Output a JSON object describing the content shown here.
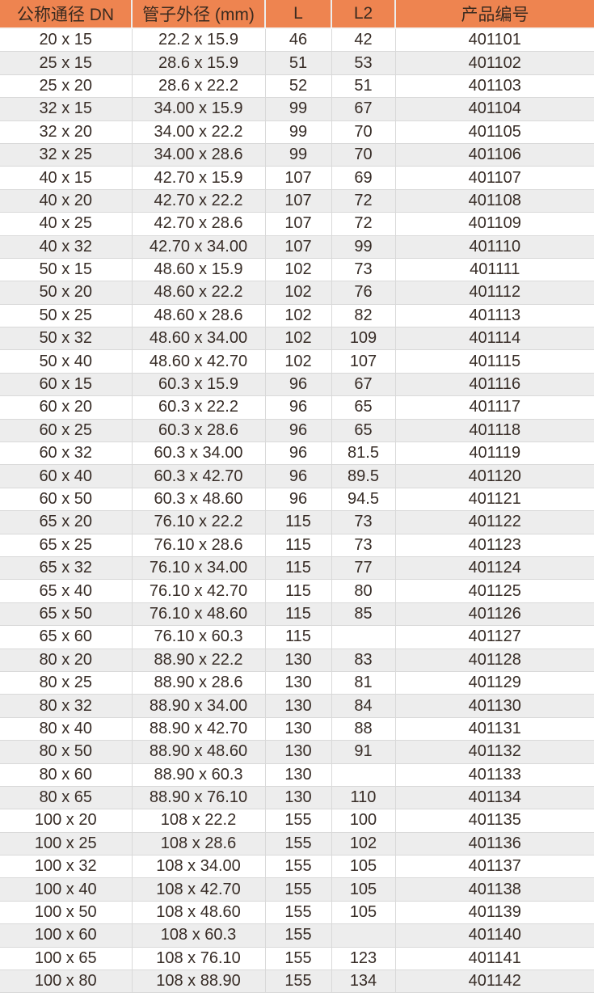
{
  "colors": {
    "header_bg": "#EE8450",
    "alt_row_bg": "#EDEDED",
    "row_bg": "#FFFFFF",
    "border": "#D9D9D9",
    "header_text": "#3B2B20",
    "body_text": "#372C26"
  },
  "chart_data": {
    "type": "table",
    "columns": [
      "公称通径 DN",
      "管子外径 (mm)",
      "L",
      "L2",
      "产品编号"
    ],
    "rows": [
      [
        "20 x 15",
        "22.2 x 15.9",
        "46",
        "42",
        "401101"
      ],
      [
        "25 x 15",
        "28.6 x 15.9",
        "51",
        "53",
        "401102"
      ],
      [
        "25 x 20",
        "28.6 x 22.2",
        "52",
        "51",
        "401103"
      ],
      [
        "32 x 15",
        "34.00 x 15.9",
        "99",
        "67",
        "401104"
      ],
      [
        "32 x 20",
        "34.00 x 22.2",
        "99",
        "70",
        "401105"
      ],
      [
        "32 x 25",
        "34.00 x 28.6",
        "99",
        "70",
        "401106"
      ],
      [
        "40 x 15",
        "42.70 x 15.9",
        "107",
        "69",
        "401107"
      ],
      [
        "40 x 20",
        "42.70 x 22.2",
        "107",
        "72",
        "401108"
      ],
      [
        "40 x 25",
        "42.70 x 28.6",
        "107",
        "72",
        "401109"
      ],
      [
        "40 x 32",
        "42.70 x 34.00",
        "107",
        "99",
        "401110"
      ],
      [
        "50 x 15",
        "48.60 x 15.9",
        "102",
        "73",
        "401111"
      ],
      [
        "50 x 20",
        "48.60 x 22.2",
        "102",
        "76",
        "401112"
      ],
      [
        "50 x 25",
        "48.60 x 28.6",
        "102",
        "82",
        "401113"
      ],
      [
        "50 x 32",
        "48.60 x 34.00",
        "102",
        "109",
        "401114"
      ],
      [
        "50 x 40",
        "48.60 x 42.70",
        "102",
        "107",
        "401115"
      ],
      [
        "60 x 15",
        "60.3 x 15.9",
        "96",
        "67",
        "401116"
      ],
      [
        "60 x 20",
        "60.3 x 22.2",
        "96",
        "65",
        "401117"
      ],
      [
        "60 x 25",
        "60.3 x 28.6",
        "96",
        "65",
        "401118"
      ],
      [
        "60 x 32",
        "60.3 x 34.00",
        "96",
        "81.5",
        "401119"
      ],
      [
        "60 x 40",
        "60.3 x 42.70",
        "96",
        "89.5",
        "401120"
      ],
      [
        "60 x 50",
        "60.3 x 48.60",
        "96",
        "94.5",
        "401121"
      ],
      [
        "65 x 20",
        "76.10 x 22.2",
        "115",
        "73",
        "401122"
      ],
      [
        "65 x 25",
        "76.10 x 28.6",
        "115",
        "73",
        "401123"
      ],
      [
        "65 x 32",
        "76.10 x 34.00",
        "115",
        "77",
        "401124"
      ],
      [
        "65 x 40",
        "76.10 x 42.70",
        "115",
        "80",
        "401125"
      ],
      [
        "65 x 50",
        "76.10 x 48.60",
        "115",
        "85",
        "401126"
      ],
      [
        "65 x 60",
        "76.10 x 60.3",
        "115",
        "",
        "401127"
      ],
      [
        "80 x 20",
        "88.90 x 22.2",
        "130",
        "83",
        "401128"
      ],
      [
        "80 x 25",
        "88.90 x 28.6",
        "130",
        "81",
        "401129"
      ],
      [
        "80 x 32",
        "88.90 x 34.00",
        "130",
        "84",
        "401130"
      ],
      [
        "80 x 40",
        "88.90 x 42.70",
        "130",
        "88",
        "401131"
      ],
      [
        "80 x 50",
        "88.90 x 48.60",
        "130",
        "91",
        "401132"
      ],
      [
        "80 x 60",
        "88.90 x 60.3",
        "130",
        "",
        "401133"
      ],
      [
        "80 x 65",
        "88.90 x 76.10",
        "130",
        "110",
        "401134"
      ],
      [
        "100 x 20",
        "108 x 22.2",
        "155",
        "100",
        "401135"
      ],
      [
        "100 x 25",
        "108 x 28.6",
        "155",
        "102",
        "401136"
      ],
      [
        "100 x 32",
        "108 x 34.00",
        "155",
        "105",
        "401137"
      ],
      [
        "100 x 40",
        "108 x 42.70",
        "155",
        "105",
        "401138"
      ],
      [
        "100 x 50",
        "108 x 48.60",
        "155",
        "105",
        "401139"
      ],
      [
        "100 x 60",
        "108 x 60.3",
        "155",
        "",
        "401140"
      ],
      [
        "100 x 65",
        "108 x 76.10",
        "155",
        "123",
        "401141"
      ],
      [
        "100 x 80",
        "108 x 88.90",
        "155",
        "134",
        "401142"
      ]
    ]
  }
}
